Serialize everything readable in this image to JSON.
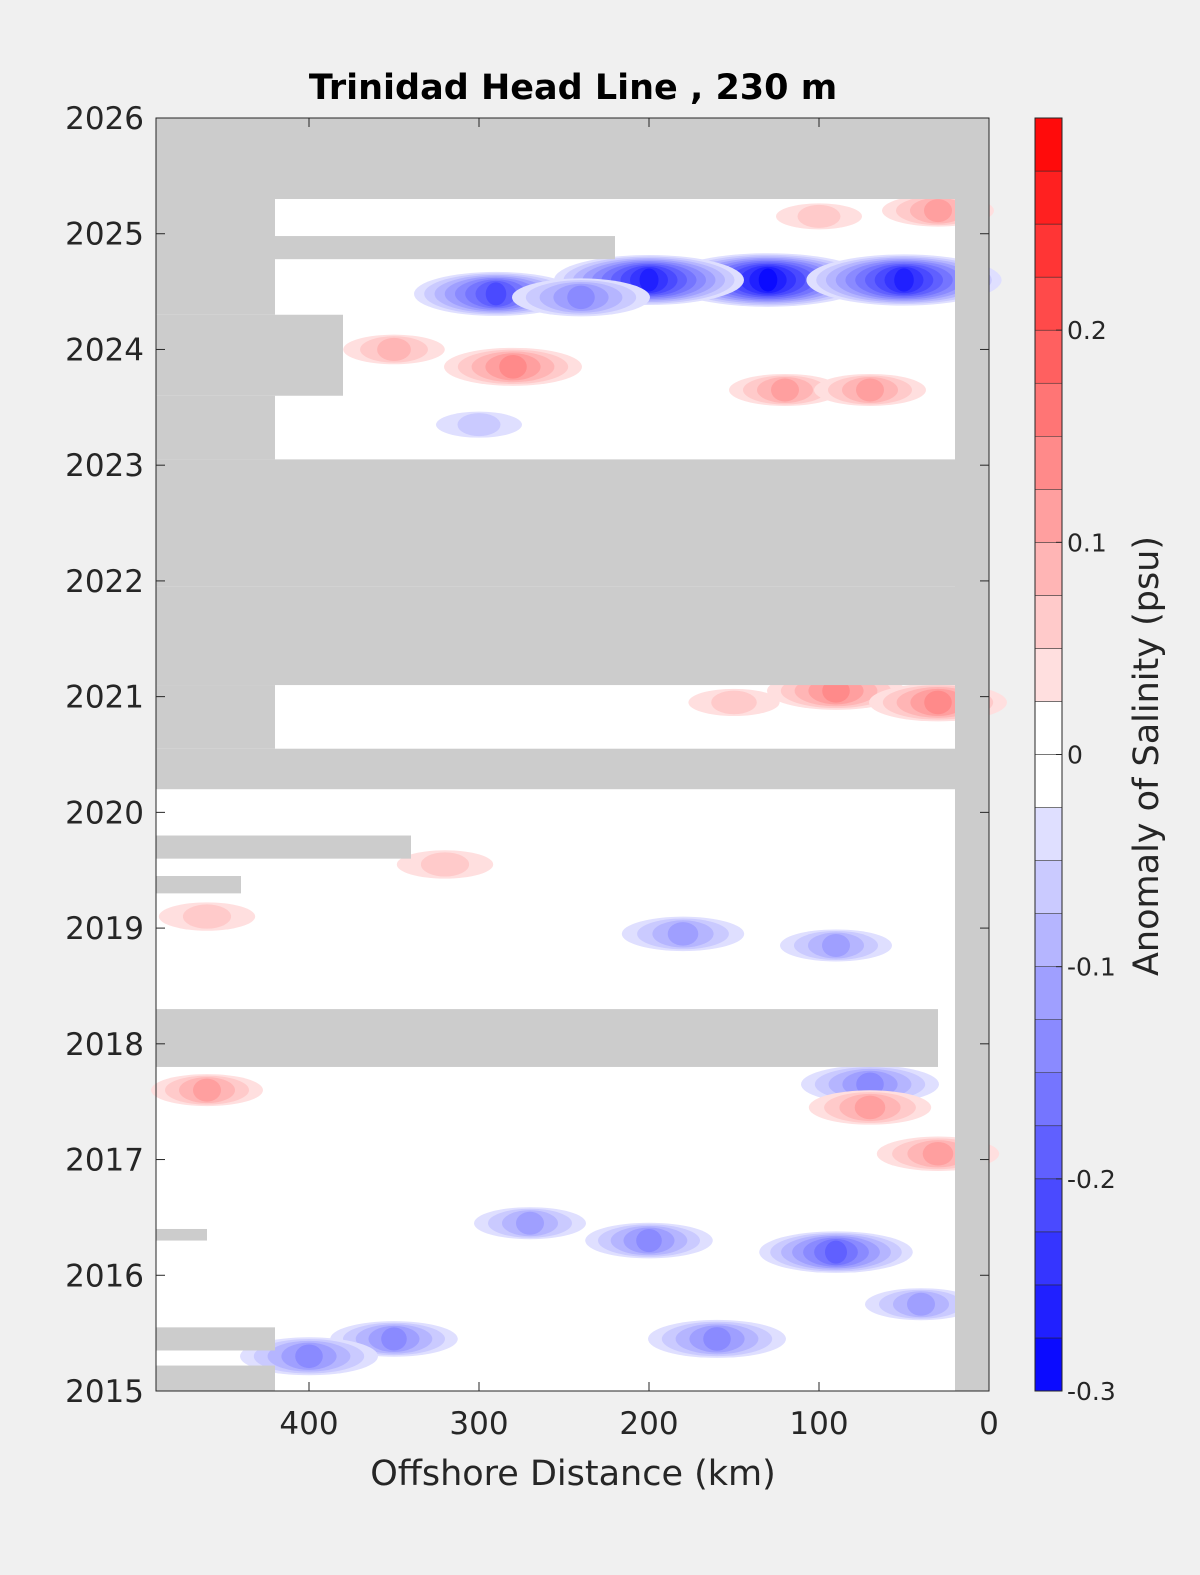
{
  "chart_data": {
    "type": "heatmap",
    "title": "Trinidad Head Line , 230 m",
    "xlabel": "Offshore Distance (km)",
    "ylabel": "",
    "xlim": [
      490,
      0
    ],
    "ylim": [
      2015,
      2026
    ],
    "x_ticks": [
      400,
      300,
      200,
      100,
      0
    ],
    "x_tick_labels": [
      "400",
      "300",
      "200",
      "100",
      "0"
    ],
    "y_ticks": [
      2015,
      2016,
      2017,
      2018,
      2019,
      2020,
      2021,
      2022,
      2023,
      2024,
      2025,
      2026
    ],
    "y_tick_labels": [
      "2015",
      "2016",
      "2017",
      "2018",
      "2019",
      "2020",
      "2021",
      "2022",
      "2023",
      "2024",
      "2025",
      "2026"
    ],
    "colorbar": {
      "label": "Anomaly of Salinity (psu)",
      "min": -0.3,
      "max": 0.3,
      "step": 0.025,
      "ticks": [
        -0.3,
        -0.2,
        -0.1,
        0,
        0.1,
        0.2
      ],
      "tick_labels": [
        "-0.3",
        "-0.2",
        "-0.1",
        "0",
        "0.1",
        "0.2"
      ],
      "low_color": "#0000ff",
      "mid_color": "#ffffff",
      "high_color": "#ff0000"
    },
    "no_data_color": "#cccccc",
    "grid": false,
    "no_data_periods": [
      {
        "t_start": 2015.0,
        "t_end": 2015.22,
        "x_start": 490,
        "x_end": 420
      },
      {
        "t_start": 2015.35,
        "t_end": 2015.55,
        "x_start": 490,
        "x_end": 420
      },
      {
        "t_start": 2016.3,
        "t_end": 2016.4,
        "x_start": 490,
        "x_end": 460
      },
      {
        "t_start": 2017.8,
        "t_end": 2018.3,
        "x_start": 490,
        "x_end": 30
      },
      {
        "t_start": 2019.3,
        "t_end": 2019.45,
        "x_start": 490,
        "x_end": 440
      },
      {
        "t_start": 2019.6,
        "t_end": 2019.8,
        "x_start": 490,
        "x_end": 340
      },
      {
        "t_start": 2020.2,
        "t_end": 2020.55,
        "x_start": 490,
        "x_end": 20
      },
      {
        "t_start": 2020.55,
        "t_end": 2021.1,
        "x_start": 490,
        "x_end": 420
      },
      {
        "t_start": 2021.1,
        "t_end": 2021.95,
        "x_start": 490,
        "x_end": 20
      },
      {
        "t_start": 2021.95,
        "t_end": 2023.05,
        "x_start": 490,
        "x_end": 0
      },
      {
        "t_start": 2023.05,
        "t_end": 2023.6,
        "x_start": 490,
        "x_end": 420
      },
      {
        "t_start": 2023.6,
        "t_end": 2024.3,
        "x_start": 490,
        "x_end": 380
      },
      {
        "t_start": 2024.3,
        "t_end": 2025.3,
        "x_start": 490,
        "x_end": 420
      },
      {
        "t_start": 2024.78,
        "t_end": 2024.98,
        "x_start": 420,
        "x_end": 220
      },
      {
        "t_start": 2025.3,
        "t_end": 2026.0,
        "x_start": 490,
        "x_end": 0
      },
      {
        "t_start": 2015.0,
        "t_end": 2026.0,
        "x_start": 20,
        "x_end": 0
      }
    ],
    "anomaly_features": [
      {
        "x": 130,
        "t": 2024.6,
        "value": -0.28
      },
      {
        "x": 200,
        "t": 2024.6,
        "value": -0.25
      },
      {
        "x": 50,
        "t": 2024.6,
        "value": -0.26
      },
      {
        "x": 290,
        "t": 2024.48,
        "value": -0.2
      },
      {
        "x": 240,
        "t": 2024.45,
        "value": -0.15
      },
      {
        "x": 280,
        "t": 2023.85,
        "value": 0.15
      },
      {
        "x": 350,
        "t": 2024.0,
        "value": 0.08
      },
      {
        "x": 120,
        "t": 2023.65,
        "value": 0.1
      },
      {
        "x": 70,
        "t": 2023.65,
        "value": 0.1
      },
      {
        "x": 30,
        "t": 2025.2,
        "value": 0.1
      },
      {
        "x": 100,
        "t": 2025.15,
        "value": 0.05
      },
      {
        "x": 300,
        "t": 2023.35,
        "value": -0.05
      },
      {
        "x": 90,
        "t": 2021.05,
        "value": 0.15
      },
      {
        "x": 30,
        "t": 2020.95,
        "value": 0.15
      },
      {
        "x": 150,
        "t": 2020.95,
        "value": 0.06
      },
      {
        "x": 320,
        "t": 2019.55,
        "value": 0.07
      },
      {
        "x": 460,
        "t": 2019.1,
        "value": 0.07
      },
      {
        "x": 180,
        "t": 2018.95,
        "value": -0.12
      },
      {
        "x": 90,
        "t": 2018.85,
        "value": -0.1
      },
      {
        "x": 460,
        "t": 2017.6,
        "value": 0.1
      },
      {
        "x": 70,
        "t": 2017.65,
        "value": -0.15
      },
      {
        "x": 70,
        "t": 2017.45,
        "value": 0.12
      },
      {
        "x": 30,
        "t": 2017.05,
        "value": 0.12
      },
      {
        "x": 90,
        "t": 2016.2,
        "value": -0.18
      },
      {
        "x": 200,
        "t": 2016.3,
        "value": -0.13
      },
      {
        "x": 270,
        "t": 2016.45,
        "value": -0.1
      },
      {
        "x": 160,
        "t": 2015.45,
        "value": -0.15
      },
      {
        "x": 350,
        "t": 2015.45,
        "value": -0.13
      },
      {
        "x": 400,
        "t": 2015.3,
        "value": -0.15
      },
      {
        "x": 40,
        "t": 2015.75,
        "value": -0.1
      }
    ]
  }
}
